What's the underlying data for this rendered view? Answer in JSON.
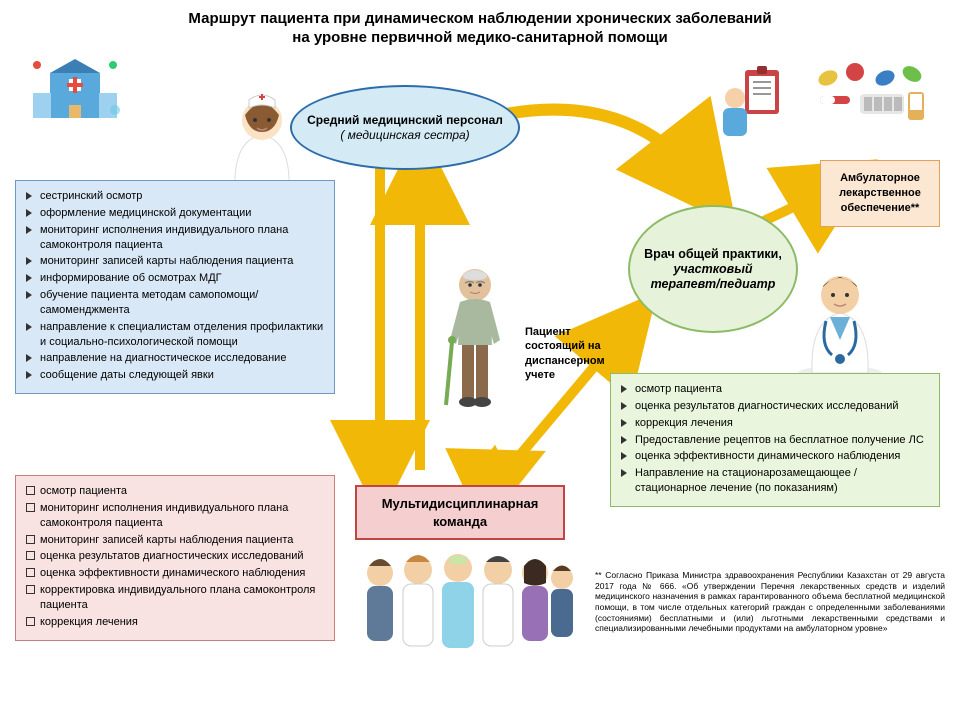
{
  "colors": {
    "ellipse_nurse_fill": "#d4ebf6",
    "ellipse_nurse_stroke": "#2c6caa",
    "ellipse_doctor_fill": "#e6f3da",
    "ellipse_doctor_stroke": "#8dbb65",
    "box_nurse_fill": "#d9e8f6",
    "box_nurse_stroke": "#6d99c6",
    "box_team_fill": "#f8e2e2",
    "box_team_stroke": "#c97e7e",
    "box_team_header_fill": "#f5cfcf",
    "box_team_header_stroke": "#c04545",
    "box_doctor_fill": "#e9f5dc",
    "box_doctor_stroke": "#8fba66",
    "box_pharm_fill": "#fce7d2",
    "box_pharm_stroke": "#e2a25a",
    "arrow": "#f2b807",
    "text": "#111"
  },
  "title": {
    "line1": "Маршрут пациента при динамическом  наблюдении хронических заболеваний",
    "line2": "на уровне первичной медико-санитарной помощи"
  },
  "nurse_ellipse": {
    "line1": "Средний медицинский персонал",
    "line2": "( медицинская сестра)"
  },
  "doctor_ellipse": {
    "line1": "Врач общей практики,",
    "line2": "участковый терапевт/педиатр"
  },
  "patient_label": {
    "line1": "Пациент",
    "line2": "состоящий на",
    "line3": "диспансерном",
    "line4": "учете"
  },
  "pharm_box": {
    "line1": "Амбулаторное",
    "line2": "лекарственное",
    "line3": "обеспечение**"
  },
  "team_header": "Мультидисциплинарная команда",
  "nurse_items": [
    "сестринский осмотр",
    "оформление медицинской документации",
    "мониторинг исполнения индивидуального плана самоконтроля пациента",
    "мониторинг записей карты наблюдения пациента",
    "информирование об осмотрах МДГ",
    "обучение пациента методам самопомощи/самоменджмента",
    "направление к специалистам отделения профилактики и социально-психологической помощи",
    "направление на диагностическое исследование",
    "сообщение даты следующей явки"
  ],
  "team_items": [
    "осмотр пациента",
    "мониторинг исполнения индивидуального плана самоконтроля пациента",
    "мониторинг записей карты наблюдения пациента",
    "оценка результатов диагностических исследований",
    "оценка эффективности динамического наблюдения",
    "корректировка индивидуального плана самоконтроля пациента",
    "коррекция лечения"
  ],
  "doctor_items": [
    "осмотр пациента",
    "оценка результатов диагностических исследований",
    "коррекция лечения",
    "Предоставление рецептов на бесплатное получение ЛС",
    "оценка эффективности динамического наблюдения",
    "Направление на стационарозамещающее / стационарное лечение (по показаниям)"
  ],
  "footnote": "** Согласно Приказа Министра здравоохранения Республики Казахстан от 29 августа 2017 года № 666.  «Об утверждении Перечня лекарственных средств и изделий медицинского назначения в рамках гарантированного объема бесплатной медицинской помощи, в том числе отдельных категорий граждан с определенными заболеваниями (состояниями) бесплатными и (или) льготными лекарственными средствами и специализированными лечебными продуктами на амбулаторном уровне»"
}
